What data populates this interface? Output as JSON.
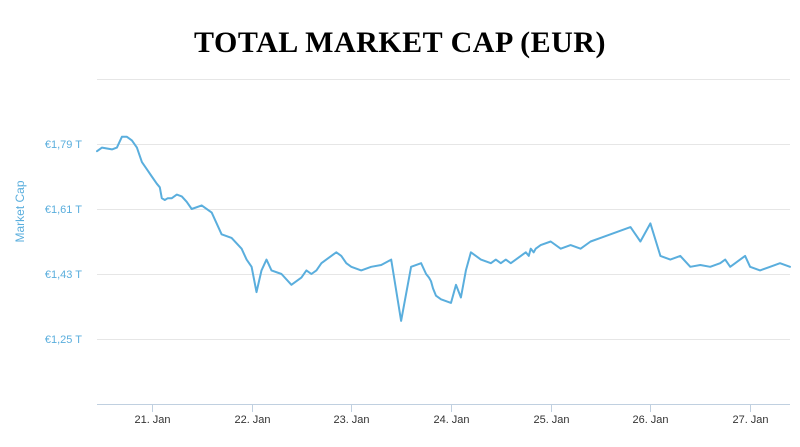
{
  "chart_data": {
    "type": "line",
    "title": "TOTAL MARKET CAP (EUR)",
    "xlabel": "",
    "ylabel": "Market Cap",
    "x_tick_labels": [
      "21. Jan",
      "22. Jan",
      "23. Jan",
      "24. Jan",
      "25. Jan",
      "26. Jan",
      "27. Jan"
    ],
    "x_tick_values": [
      21,
      22,
      23,
      24,
      25,
      26,
      27
    ],
    "xlim": [
      20.45,
      27.4
    ],
    "y_tick_labels": [
      "€1,25 T",
      "€1,43 T",
      "€1,61 T",
      "€1,79 T"
    ],
    "y_tick_values": [
      1.25,
      1.43,
      1.61,
      1.79
    ],
    "ylim": [
      1.07,
      1.97
    ],
    "grid": "horizontal",
    "legend": "none",
    "colors": {
      "line": "#5aaedd",
      "grid": "#e6e6e6",
      "axis_label": "#5aaedd",
      "tick": "#333333",
      "axis_line": "#c0d0e0"
    },
    "series": [
      {
        "x": [
          20.45,
          20.5,
          20.6,
          20.65,
          20.7,
          20.75,
          20.8,
          20.85,
          20.9,
          20.95,
          21.0,
          21.05,
          21.08,
          21.1,
          21.13,
          21.16,
          21.2,
          21.25,
          21.3,
          21.35,
          21.4,
          21.5,
          21.6,
          21.7,
          21.8,
          21.9,
          21.95,
          22.0,
          22.05,
          22.1,
          22.15,
          22.2,
          22.3,
          22.4,
          22.5,
          22.55,
          22.6,
          22.65,
          22.7,
          22.75,
          22.8,
          22.85,
          22.9,
          22.95,
          23.0,
          23.1,
          23.2,
          23.3,
          23.4,
          23.5,
          23.6,
          23.7,
          23.75,
          23.78,
          23.8,
          23.82,
          23.85,
          23.9,
          24.0,
          24.05,
          24.1,
          24.15,
          24.2,
          24.3,
          24.4,
          24.45,
          24.5,
          24.55,
          24.6,
          24.65,
          24.7,
          24.75,
          24.78,
          24.8,
          24.83,
          24.85,
          24.9,
          25.0,
          25.1,
          25.2,
          25.3,
          25.4,
          25.5,
          25.6,
          25.7,
          25.8,
          25.9,
          26.0,
          26.1,
          26.2,
          26.3,
          26.4,
          26.5,
          26.6,
          26.7,
          26.75,
          26.8,
          26.85,
          26.9,
          26.95,
          27.0,
          27.1,
          27.2,
          27.3,
          27.4
        ],
        "y": [
          1.77,
          1.78,
          1.775,
          1.78,
          1.81,
          1.81,
          1.8,
          1.78,
          1.74,
          1.72,
          1.7,
          1.68,
          1.67,
          1.64,
          1.635,
          1.64,
          1.64,
          1.65,
          1.645,
          1.63,
          1.61,
          1.62,
          1.6,
          1.54,
          1.53,
          1.5,
          1.47,
          1.45,
          1.38,
          1.44,
          1.47,
          1.44,
          1.43,
          1.4,
          1.42,
          1.44,
          1.43,
          1.44,
          1.46,
          1.47,
          1.48,
          1.49,
          1.48,
          1.46,
          1.45,
          1.44,
          1.45,
          1.455,
          1.47,
          1.3,
          1.45,
          1.46,
          1.43,
          1.42,
          1.41,
          1.39,
          1.37,
          1.36,
          1.35,
          1.4,
          1.365,
          1.44,
          1.49,
          1.47,
          1.46,
          1.47,
          1.46,
          1.47,
          1.46,
          1.47,
          1.48,
          1.49,
          1.48,
          1.5,
          1.49,
          1.5,
          1.51,
          1.52,
          1.5,
          1.51,
          1.5,
          1.52,
          1.53,
          1.54,
          1.55,
          1.56,
          1.52,
          1.57,
          1.48,
          1.47,
          1.48,
          1.45,
          1.455,
          1.45,
          1.46,
          1.47,
          1.45,
          1.46,
          1.47,
          1.48,
          1.45,
          1.44,
          1.45,
          1.46,
          1.45
        ]
      }
    ]
  }
}
